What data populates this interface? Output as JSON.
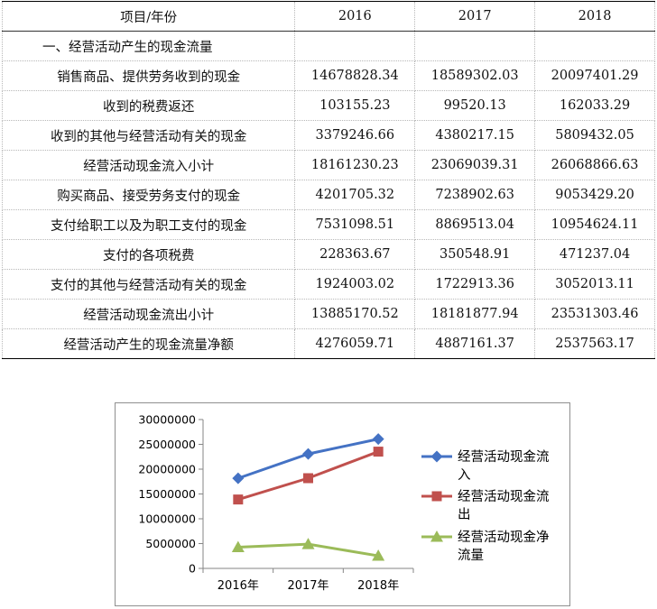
{
  "table": {
    "header": [
      "项目/年份",
      "2016",
      "2017",
      "2018"
    ],
    "rows": [
      {
        "label": "一、经营活动产生的现金流量",
        "values": [
          "",
          "",
          ""
        ],
        "align": "left"
      },
      {
        "label": "销售商品、提供劳务收到的现金",
        "values": [
          "14678828.34",
          "18589302.03",
          "20097401.29"
        ]
      },
      {
        "label": "收到的税费返还",
        "values": [
          "103155.23",
          "99520.13",
          "162033.29"
        ]
      },
      {
        "label": "收到的其他与经营活动有关的现金",
        "values": [
          "3379246.66",
          "4380217.15",
          "5809432.05"
        ]
      },
      {
        "label": "经营活动现金流入小计",
        "values": [
          "18161230.23",
          "23069039.31",
          "26068866.63"
        ]
      },
      {
        "label": "购买商品、接受劳务支付的现金",
        "values": [
          "4201705.32",
          "7238902.63",
          "9053429.20"
        ]
      },
      {
        "label": "支付给职工以及为职工支付的现金",
        "values": [
          "7531098.51",
          "8869513.04",
          "10954624.11"
        ]
      },
      {
        "label": "支付的各项税费",
        "values": [
          "228363.67",
          "350548.91",
          "471237.04"
        ]
      },
      {
        "label": "支付的其他与经营活动有关的现金",
        "values": [
          "1924003.02",
          "1722913.36",
          "3052013.11"
        ]
      },
      {
        "label": "经营活动现金流出小计",
        "values": [
          "13885170.52",
          "18181877.94",
          "23531303.46"
        ]
      },
      {
        "label": "经营活动产生的现金流量净额",
        "values": [
          "4276059.71",
          "4887161.37",
          "2537563.17"
        ]
      }
    ]
  },
  "chart_data": {
    "type": "line",
    "categories": [
      "2016年",
      "2017年",
      "2018年"
    ],
    "ylim": [
      0,
      30000000
    ],
    "yticks": [
      "0",
      "5000000",
      "10000000",
      "15000000",
      "20000000",
      "25000000",
      "30000000"
    ],
    "grid": "off",
    "legend_position": "right",
    "series": [
      {
        "name_lines": [
          "经营活动现金流",
          "入"
        ],
        "values": [
          18161230.23,
          23069039.31,
          26068866.63
        ],
        "color": "#4472C4",
        "marker": "diamond"
      },
      {
        "name_lines": [
          "经营活动现金流",
          "出"
        ],
        "values": [
          13885170.52,
          18181877.94,
          23531303.46
        ],
        "color": "#C0504D",
        "marker": "square"
      },
      {
        "name_lines": [
          "经营活动现金净",
          "流量"
        ],
        "values": [
          4276059.71,
          4887161.37,
          2537563.17
        ],
        "color": "#9BBB59",
        "marker": "triangle"
      }
    ]
  }
}
